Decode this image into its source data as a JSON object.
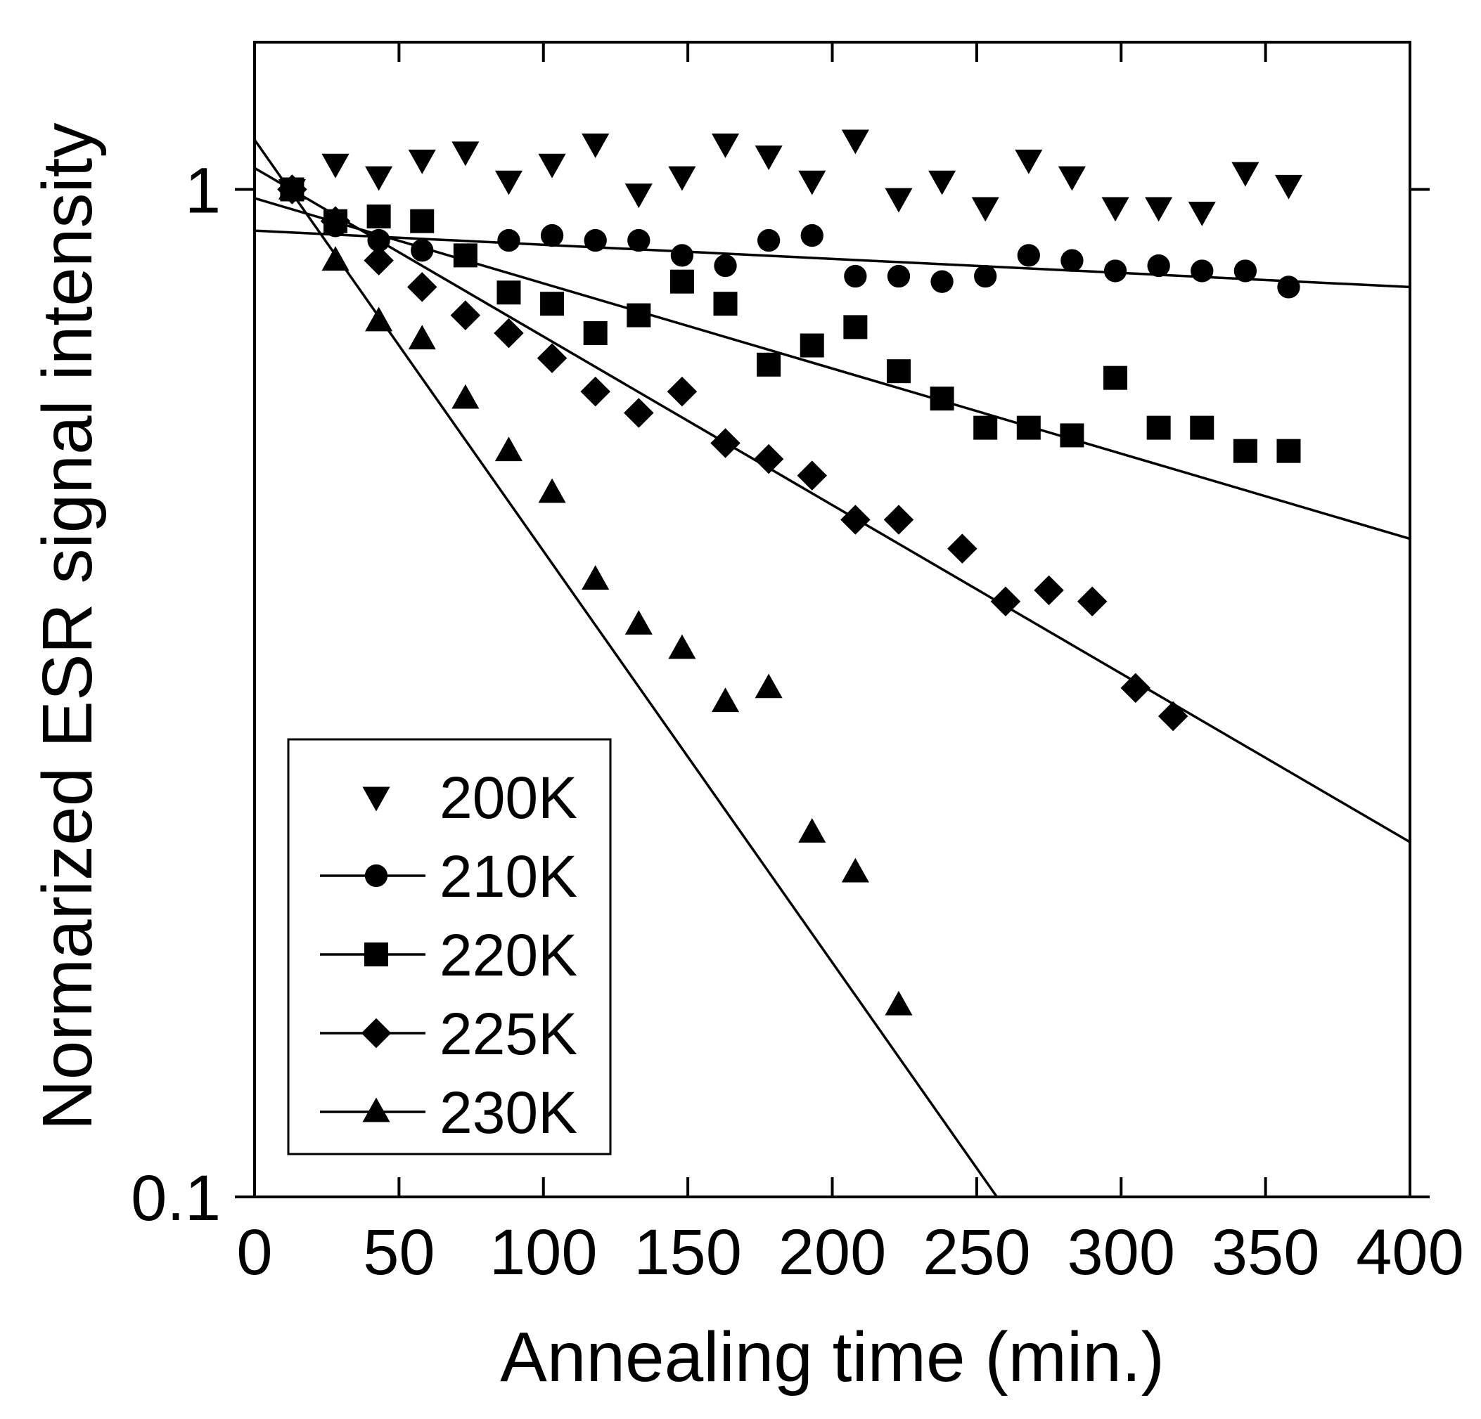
{
  "chart_data": {
    "type": "scatter",
    "xlabel": "Annealing time (min.)",
    "ylabel": "Normarized ESR signal intensity",
    "xlim": [
      0,
      400
    ],
    "ylim": [
      0.1,
      1.4
    ],
    "yscale": "log",
    "x_ticks": [
      0,
      50,
      100,
      150,
      200,
      250,
      300,
      350,
      400
    ],
    "x_tick_labels": [
      "0",
      "50",
      "100",
      "150",
      "200",
      "250",
      "300",
      "350",
      "400"
    ],
    "y_ticks": [
      0.1,
      1
    ],
    "y_tick_labels": [
      "0.1",
      "1"
    ],
    "legend_position": "bottom-left",
    "series": [
      {
        "name": "200K",
        "marker": "triangle-down",
        "fit_line": false,
        "points": [
          [
            13,
            1.0
          ],
          [
            28,
            1.06
          ],
          [
            43,
            1.03
          ],
          [
            58,
            1.07
          ],
          [
            73,
            1.09
          ],
          [
            88,
            1.02
          ],
          [
            103,
            1.06
          ],
          [
            118,
            1.11
          ],
          [
            133,
            0.99
          ],
          [
            148,
            1.03
          ],
          [
            163,
            1.11
          ],
          [
            178,
            1.08
          ],
          [
            193,
            1.02
          ],
          [
            208,
            1.12
          ],
          [
            223,
            0.98
          ],
          [
            238,
            1.02
          ],
          [
            253,
            0.96
          ],
          [
            268,
            1.07
          ],
          [
            283,
            1.03
          ],
          [
            298,
            0.96
          ],
          [
            313,
            0.96
          ],
          [
            328,
            0.95
          ],
          [
            343,
            1.04
          ],
          [
            358,
            1.01
          ]
        ]
      },
      {
        "name": "210K",
        "marker": "circle",
        "fit_line": true,
        "fit": [
          [
            0,
            0.91
          ],
          [
            400,
            0.8
          ]
        ],
        "points": [
          [
            13,
            1.0
          ],
          [
            28,
            0.92
          ],
          [
            43,
            0.89
          ],
          [
            58,
            0.87
          ],
          [
            73,
            0.86
          ],
          [
            88,
            0.89
          ],
          [
            103,
            0.9
          ],
          [
            118,
            0.89
          ],
          [
            133,
            0.89
          ],
          [
            148,
            0.86
          ],
          [
            163,
            0.84
          ],
          [
            178,
            0.89
          ],
          [
            193,
            0.9
          ],
          [
            208,
            0.82
          ],
          [
            223,
            0.82
          ],
          [
            238,
            0.81
          ],
          [
            253,
            0.82
          ],
          [
            268,
            0.86
          ],
          [
            283,
            0.85
          ],
          [
            298,
            0.83
          ],
          [
            313,
            0.84
          ],
          [
            328,
            0.83
          ],
          [
            343,
            0.83
          ],
          [
            358,
            0.8
          ]
        ]
      },
      {
        "name": "220K",
        "marker": "square",
        "fit_line": true,
        "fit": [
          [
            0,
            0.98
          ],
          [
            400,
            0.45
          ]
        ],
        "points": [
          [
            13,
            1.0
          ],
          [
            28,
            0.93
          ],
          [
            43,
            0.94
          ],
          [
            58,
            0.93
          ],
          [
            73,
            0.86
          ],
          [
            88,
            0.79
          ],
          [
            103,
            0.77
          ],
          [
            118,
            0.72
          ],
          [
            133,
            0.75
          ],
          [
            148,
            0.81
          ],
          [
            163,
            0.77
          ],
          [
            178,
            0.67
          ],
          [
            193,
            0.7
          ],
          [
            208,
            0.73
          ],
          [
            223,
            0.66
          ],
          [
            238,
            0.62
          ],
          [
            253,
            0.58
          ],
          [
            268,
            0.58
          ],
          [
            283,
            0.57
          ],
          [
            298,
            0.65
          ],
          [
            313,
            0.58
          ],
          [
            328,
            0.58
          ],
          [
            343,
            0.55
          ],
          [
            358,
            0.55
          ]
        ]
      },
      {
        "name": "225K",
        "marker": "diamond",
        "fit_line": true,
        "fit": [
          [
            0,
            1.05
          ],
          [
            400,
            0.225
          ]
        ],
        "points": [
          [
            13,
            1.0
          ],
          [
            28,
            0.93
          ],
          [
            43,
            0.85
          ],
          [
            58,
            0.8
          ],
          [
            73,
            0.75
          ],
          [
            88,
            0.72
          ],
          [
            103,
            0.68
          ],
          [
            118,
            0.63
          ],
          [
            133,
            0.6
          ],
          [
            148,
            0.63
          ],
          [
            163,
            0.56
          ],
          [
            178,
            0.54
          ],
          [
            193,
            0.52
          ],
          [
            208,
            0.47
          ],
          [
            223,
            0.47
          ],
          [
            245,
            0.44
          ],
          [
            260,
            0.39
          ],
          [
            275,
            0.4
          ],
          [
            290,
            0.39
          ],
          [
            305,
            0.32
          ],
          [
            318,
            0.3
          ]
        ]
      },
      {
        "name": "230K",
        "marker": "triangle-up",
        "fit_line": true,
        "fit": [
          [
            0,
            1.12
          ],
          [
            257,
            0.1
          ]
        ],
        "points": [
          [
            13,
            1.0
          ],
          [
            28,
            0.85
          ],
          [
            43,
            0.74
          ],
          [
            58,
            0.71
          ],
          [
            73,
            0.62
          ],
          [
            88,
            0.55
          ],
          [
            103,
            0.5
          ],
          [
            118,
            0.41
          ],
          [
            133,
            0.37
          ],
          [
            148,
            0.35
          ],
          [
            163,
            0.31
          ],
          [
            178,
            0.32
          ],
          [
            193,
            0.23
          ],
          [
            208,
            0.21
          ],
          [
            223,
            0.155
          ]
        ]
      }
    ]
  }
}
